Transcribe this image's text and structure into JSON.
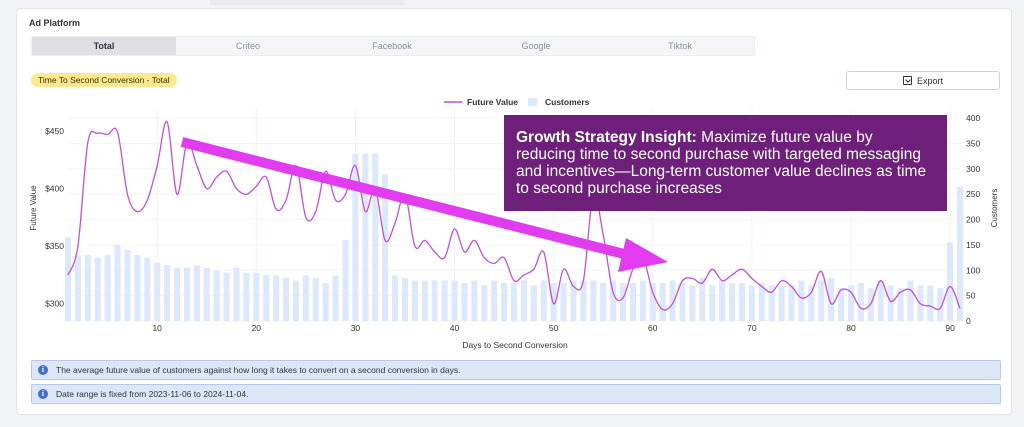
{
  "header": {
    "title": "Ad Platform"
  },
  "tabs": [
    {
      "label": "Total",
      "active": true
    },
    {
      "label": "Criteo",
      "active": false
    },
    {
      "label": "Facebook",
      "active": false
    },
    {
      "label": "Google",
      "active": false
    },
    {
      "label": "Tiktok",
      "active": false
    }
  ],
  "badge": {
    "label": "Time To Second Conversion - Total",
    "color": "#fbe88f"
  },
  "toolbar": {
    "export_label": "Export",
    "export_icon": "download-icon"
  },
  "insight": {
    "title": "Growth Strategy Insight:",
    "body": "Maximize future value by reducing time to second purchase with targeted messaging and incentives—Long-term customer value declines as time to second purchase increases",
    "background": "#6d1f7a",
    "arrow_color": "#e23cf0"
  },
  "info": [
    {
      "icon": "info-icon",
      "text": "The average future value of customers against how long it takes to convert on a second conversion in days."
    },
    {
      "icon": "info-icon",
      "text": "Date range is fixed from 2023-11-06 to 2024-11-04."
    }
  ],
  "chart_data": {
    "type": "line+bar",
    "xlabel": "Days to Second Conversion",
    "ylabel_left": "Future Value",
    "ylabel_right": "Customers",
    "x_ticks": [
      10,
      20,
      30,
      40,
      50,
      60,
      70,
      80,
      90
    ],
    "y_left_ticks": [
      "$300",
      "$350",
      "$400",
      "$450"
    ],
    "y_left_values": [
      300,
      350,
      400,
      450
    ],
    "y_left_range": [
      285,
      470
    ],
    "y_right_ticks": [
      0,
      50,
      100,
      150,
      200,
      250,
      300,
      350,
      400
    ],
    "y_right_range": [
      0,
      420
    ],
    "x_range": [
      1,
      91
    ],
    "legend": {
      "position": "top-center",
      "line_label": "Future Value",
      "bar_label": "Customers"
    },
    "colors": {
      "line": "#c14fe0",
      "bars": "#dde9fb"
    },
    "series": [
      {
        "name": "Customers",
        "kind": "bar",
        "x": [
          1,
          2,
          3,
          4,
          5,
          6,
          7,
          8,
          9,
          10,
          11,
          12,
          13,
          14,
          15,
          16,
          17,
          18,
          19,
          20,
          21,
          22,
          23,
          24,
          25,
          26,
          27,
          28,
          29,
          30,
          31,
          32,
          33,
          34,
          35,
          36,
          37,
          38,
          39,
          40,
          41,
          42,
          43,
          44,
          45,
          46,
          47,
          48,
          49,
          50,
          51,
          52,
          53,
          54,
          55,
          56,
          57,
          58,
          59,
          60,
          61,
          62,
          63,
          64,
          65,
          66,
          67,
          68,
          69,
          70,
          71,
          72,
          73,
          74,
          75,
          76,
          77,
          78,
          79,
          80,
          81,
          82,
          83,
          84,
          85,
          86,
          87,
          88,
          89,
          90,
          91
        ],
        "values": [
          165,
          130,
          130,
          125,
          130,
          150,
          140,
          130,
          125,
          115,
          110,
          105,
          105,
          110,
          105,
          100,
          95,
          105,
          95,
          95,
          90,
          90,
          85,
          80,
          90,
          85,
          75,
          90,
          160,
          330,
          330,
          330,
          290,
          90,
          85,
          80,
          80,
          80,
          80,
          80,
          75,
          80,
          70,
          80,
          75,
          75,
          80,
          70,
          80,
          75,
          75,
          80,
          80,
          80,
          75,
          80,
          75,
          75,
          80,
          75,
          75,
          80,
          75,
          70,
          85,
          70,
          80,
          75,
          75,
          70,
          75,
          70,
          70,
          70,
          80,
          70,
          80,
          85,
          65,
          70,
          75,
          65,
          80,
          70,
          65,
          80,
          70,
          70,
          65,
          155,
          265
        ]
      },
      {
        "name": "Future Value",
        "kind": "line",
        "x": [
          1,
          2,
          3,
          4,
          5,
          6,
          7,
          8,
          9,
          10,
          11,
          12,
          13,
          14,
          15,
          16,
          17,
          18,
          19,
          20,
          21,
          22,
          23,
          24,
          25,
          26,
          27,
          28,
          29,
          30,
          31,
          32,
          33,
          34,
          35,
          36,
          37,
          38,
          39,
          40,
          41,
          42,
          43,
          44,
          45,
          46,
          47,
          48,
          49,
          50,
          51,
          52,
          53,
          54,
          55,
          56,
          57,
          58,
          59,
          60,
          61,
          62,
          63,
          64,
          65,
          66,
          67,
          68,
          69,
          70,
          71,
          72,
          73,
          74,
          75,
          76,
          77,
          78,
          79,
          80,
          81,
          82,
          83,
          84,
          85,
          86,
          87,
          88,
          89,
          90,
          91
        ],
        "values": [
          325,
          350,
          440,
          448,
          447,
          449,
          395,
          380,
          390,
          420,
          458,
          395,
          440,
          420,
          400,
          410,
          415,
          400,
          395,
          402,
          410,
          382,
          390,
          420,
          375,
          380,
          415,
          390,
          395,
          420,
          380,
          400,
          355,
          370,
          395,
          350,
          355,
          345,
          340,
          365,
          345,
          355,
          340,
          335,
          340,
          320,
          325,
          330,
          345,
          300,
          330,
          315,
          320,
          395,
          360,
          310,
          305,
          330,
          340,
          310,
          295,
          300,
          320,
          322,
          318,
          330,
          320,
          325,
          330,
          322,
          315,
          310,
          320,
          315,
          305,
          310,
          328,
          300,
          312,
          310,
          296,
          300,
          320,
          302,
          310,
          312,
          300,
          298,
          296,
          315,
          296
        ]
      }
    ]
  }
}
